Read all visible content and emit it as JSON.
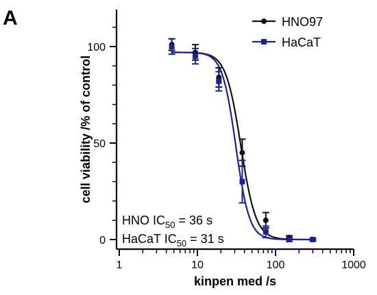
{
  "panel_label": "A",
  "chart_data": {
    "type": "scatter",
    "x_scale": "log",
    "xlabel": "kinpen med /s",
    "ylabel": "cell viability /% of control",
    "xlim": [
      1,
      1000
    ],
    "ylim": [
      -3,
      118
    ],
    "x_ticks": [
      "1",
      "10",
      "100",
      "1000"
    ],
    "y_ticks": [
      "0",
      "50",
      "100"
    ],
    "grid": false,
    "legend_position": "top-right",
    "series": [
      {
        "name": "HNO97",
        "color": "#111111",
        "marker": "circle",
        "x": [
          4.7,
          9.4,
          18.8,
          37.5,
          75,
          150,
          300
        ],
        "y": [
          101,
          97,
          84,
          45,
          10,
          1,
          0
        ],
        "error": [
          3,
          4,
          5,
          7,
          4,
          1,
          0.5
        ],
        "fit": {
          "top": 97,
          "bottom": 0,
          "ic50": 36,
          "hill": 4.5
        }
      },
      {
        "name": "HaCaT",
        "color": "#1a2296",
        "marker": "square",
        "x": [
          4.7,
          9.4,
          18.8,
          37.5,
          75,
          150,
          300
        ],
        "y": [
          100,
          95,
          82,
          30,
          4,
          0,
          0
        ],
        "error": [
          4,
          4,
          5,
          11,
          3,
          1,
          0.5
        ],
        "fit": {
          "top": 97,
          "bottom": 0,
          "ic50": 31,
          "hill": 5
        }
      }
    ],
    "annotations": [
      {
        "prefix": "HNO IC",
        "sub": "50",
        "suffix": " = 36 s"
      },
      {
        "prefix": "HaCaT IC",
        "sub": "50",
        "suffix": " = 31 s"
      }
    ]
  }
}
